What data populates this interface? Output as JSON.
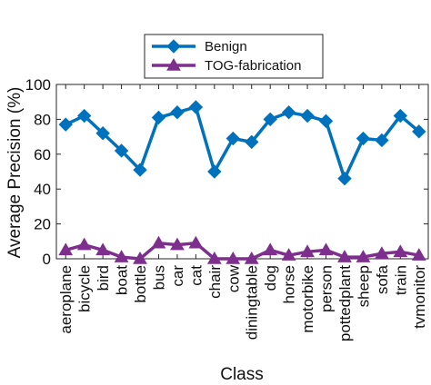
{
  "chart_data": {
    "type": "line",
    "title": "",
    "xlabel": "Class",
    "ylabel": "Average Precision (%)",
    "ylim": [
      0,
      100
    ],
    "yticks": [
      0,
      20,
      40,
      60,
      80,
      100
    ],
    "grid": false,
    "legend_position": "top-center",
    "categories": [
      "aeroplane",
      "bicycle",
      "bird",
      "boat",
      "bottle",
      "bus",
      "car",
      "cat",
      "chair",
      "cow",
      "diningtable",
      "dog",
      "horse",
      "motorbike",
      "person",
      "pottedplant",
      "sheep",
      "sofa",
      "train",
      "tvmonitor"
    ],
    "series": [
      {
        "name": "Benign",
        "color": "#0072BD",
        "marker": "diamond",
        "values": [
          77,
          82,
          72,
          62,
          51,
          81,
          84,
          87,
          50,
          69,
          67,
          80,
          84,
          82,
          79,
          46,
          69,
          68,
          82,
          73
        ]
      },
      {
        "name": "TOG-fabrication",
        "color": "#7E2F8E",
        "marker": "triangle",
        "values": [
          5,
          8,
          5,
          1,
          0,
          9,
          8,
          9,
          0,
          0,
          0,
          5,
          2,
          4,
          5,
          1,
          1,
          3,
          4,
          2
        ]
      }
    ]
  }
}
